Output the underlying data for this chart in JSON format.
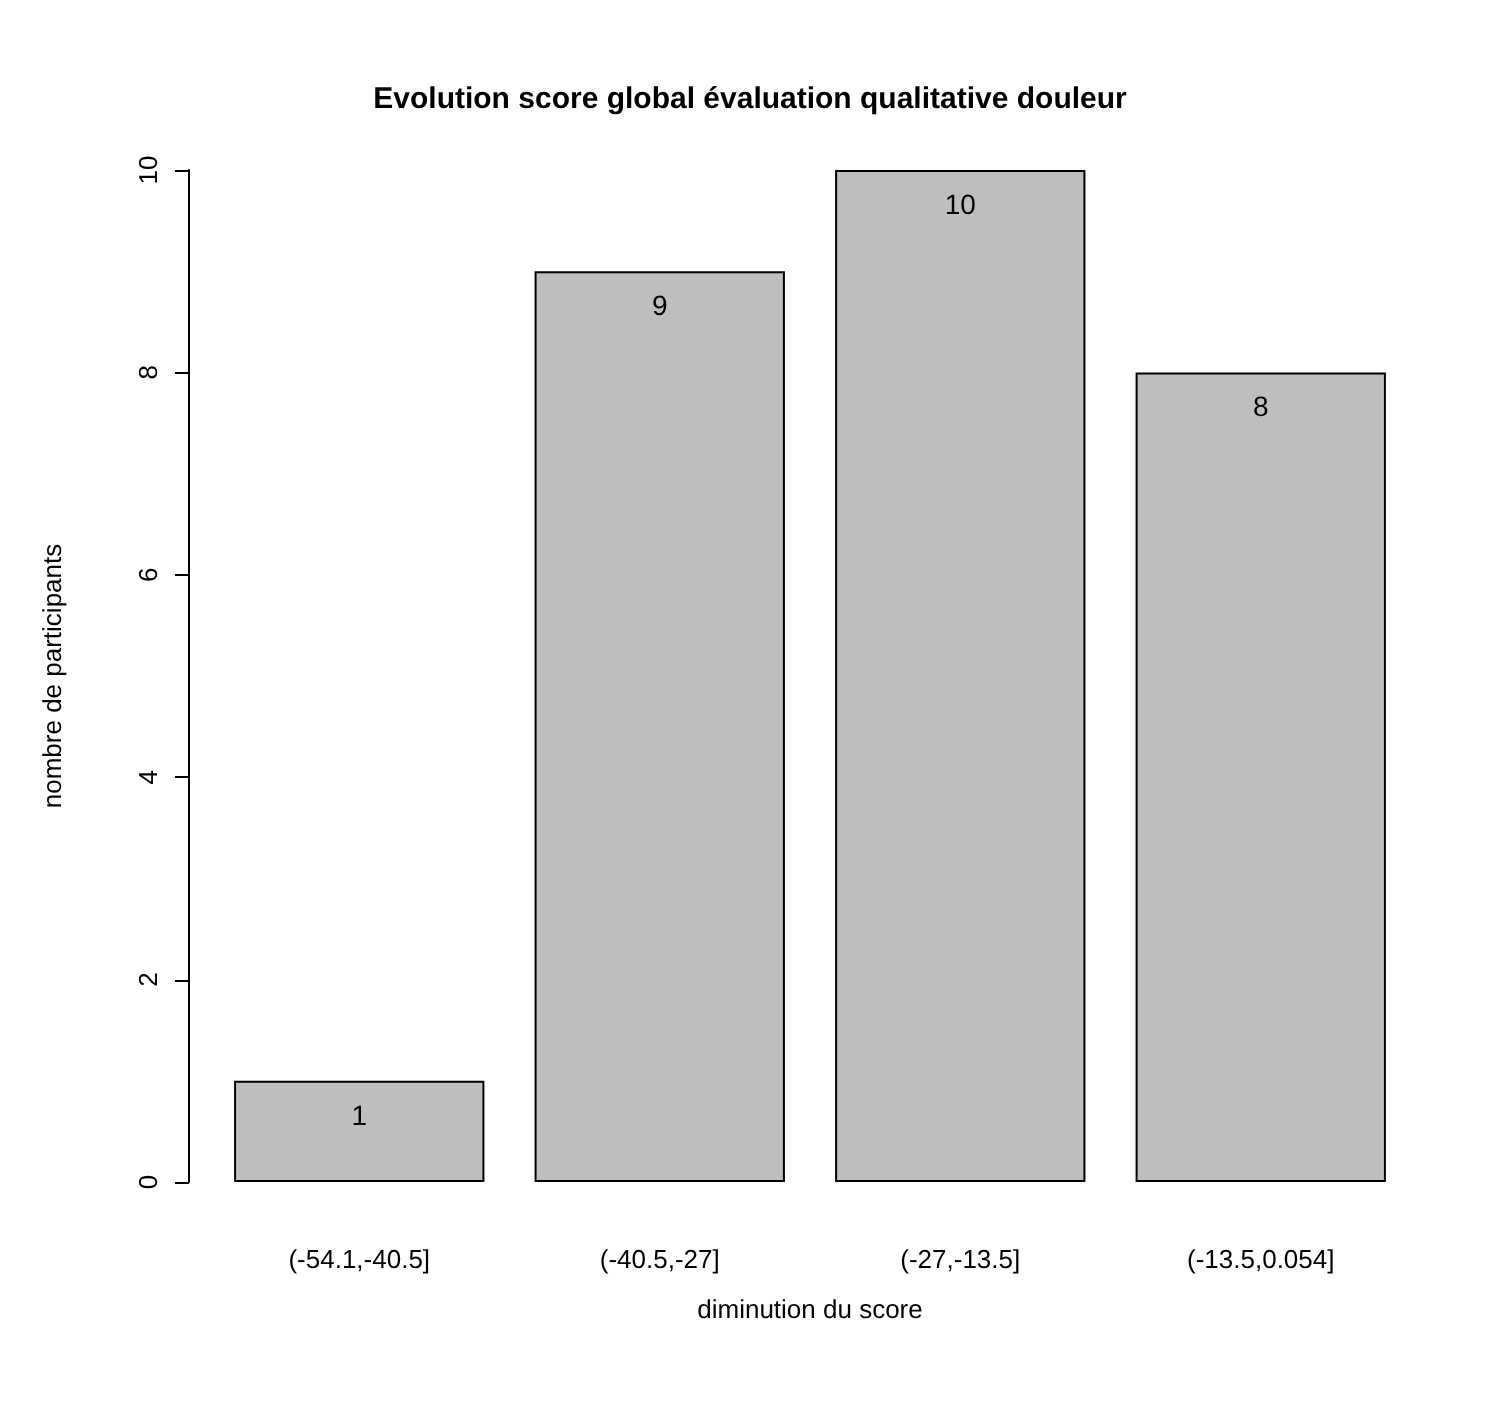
{
  "chart_data": {
    "type": "bar",
    "title": "Evolution score global évaluation qualitative douleur",
    "xlabel": "diminution du score",
    "ylabel": "nombre de participants",
    "categories": [
      "(-54.1,-40.5]",
      "(-40.5,-27]",
      "(-27,-13.5]",
      "(-13.5,0.054]"
    ],
    "values": [
      1,
      9,
      10,
      8
    ],
    "color": "#bebebe",
    "ylim": [
      0,
      10
    ],
    "yticks": [
      0,
      2,
      4,
      6,
      8,
      10
    ],
    "data_labels": true
  }
}
